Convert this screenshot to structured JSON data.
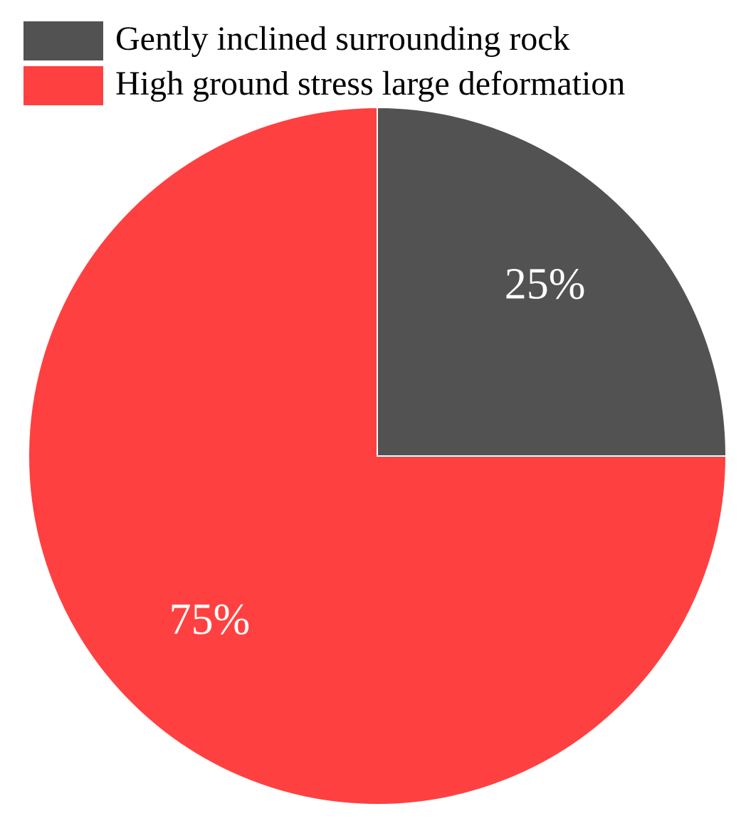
{
  "chart_data": {
    "type": "pie",
    "categories": [
      "Gently inclined surrounding rock",
      "High ground stress large deformation"
    ],
    "values": [
      25,
      75
    ],
    "value_labels": [
      "25%",
      "75%"
    ],
    "colors": [
      "#525252",
      "#ff4040"
    ],
    "legend": "upper left"
  }
}
